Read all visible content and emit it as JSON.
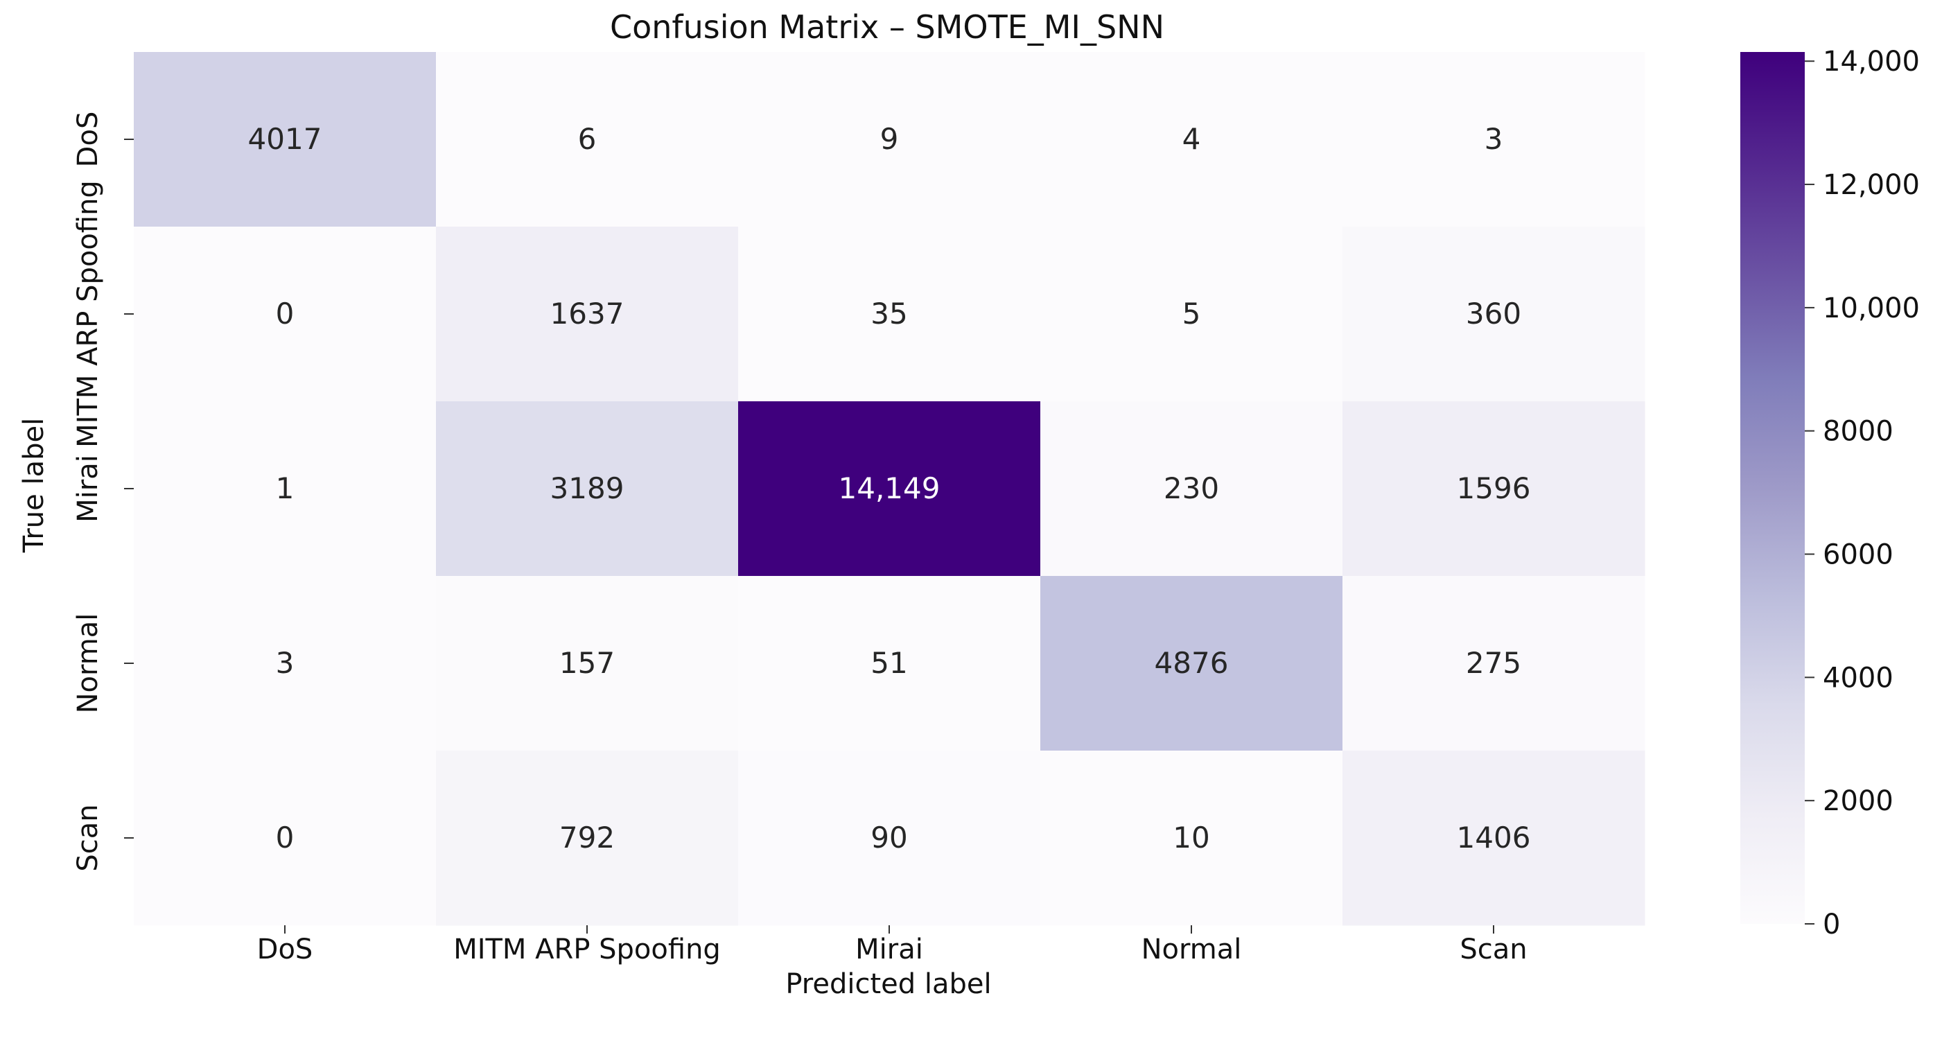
{
  "chart_data": {
    "type": "heatmap",
    "title": "Confusion Matrix – SMOTE_MI_SNN",
    "xlabel": "Predicted label",
    "ylabel": "True label",
    "x_categories": [
      "DoS",
      "MITM ARP Spoofing",
      "Mirai",
      "Normal",
      "Scan"
    ],
    "y_categories": [
      "DoS",
      "MITM ARP Spoofing",
      "Mirai",
      "Normal",
      "Scan"
    ],
    "values": [
      [
        4017,
        6,
        9,
        4,
        3
      ],
      [
        0,
        1637,
        35,
        5,
        360
      ],
      [
        1,
        3189,
        14149,
        230,
        1596
      ],
      [
        3,
        157,
        51,
        4876,
        275
      ],
      [
        0,
        792,
        90,
        10,
        1406
      ]
    ],
    "cell_labels": [
      [
        "4017",
        "6",
        "9",
        "4",
        "3"
      ],
      [
        "0",
        "1637",
        "35",
        "5",
        "360"
      ],
      [
        "1",
        "3189",
        "14,149",
        "230",
        "1596"
      ],
      [
        "3",
        "157",
        "51",
        "4876",
        "275"
      ],
      [
        "0",
        "792",
        "90",
        "10",
        "1406"
      ]
    ],
    "colormap": "Purples",
    "colormap_colors": [
      "#fcfbfd",
      "#efedf5",
      "#dadaeb",
      "#bcbddc",
      "#9e9ac8",
      "#807dba",
      "#6a51a3",
      "#54278f",
      "#3f007d"
    ],
    "colorbar": {
      "range": [
        0,
        14149
      ],
      "ticks": [
        0,
        2000,
        4000,
        6000,
        8000,
        10000,
        12000,
        14000
      ],
      "tick_labels": [
        "0",
        "2000",
        "4000",
        "6000",
        "8000",
        "10,000",
        "12,000",
        "14,000"
      ]
    },
    "grid": false
  }
}
